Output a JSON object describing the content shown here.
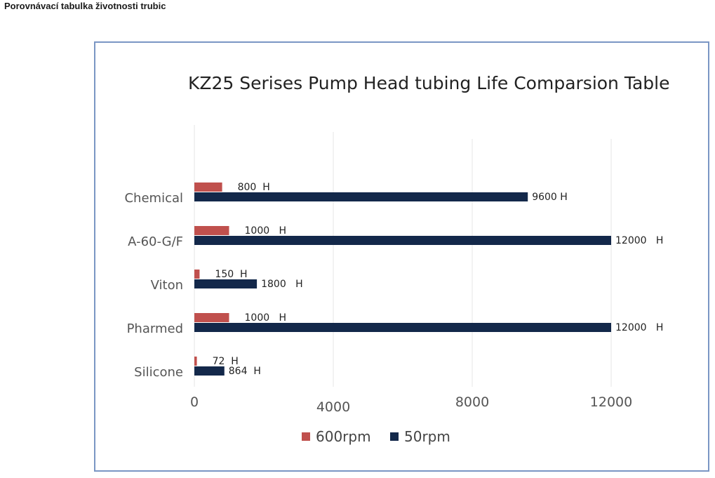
{
  "page": {
    "heading": "Porovnávací tabulka životnosti trubic"
  },
  "chart_data": {
    "type": "bar",
    "orientation": "horizontal",
    "title": "KZ25 Serises Pump Head tubing Life Comparsion Table",
    "categories": [
      "Chemical",
      "A-60-G/F",
      "Viton",
      "Pharmed",
      "Silicone"
    ],
    "series": [
      {
        "name": "600rpm",
        "color": "#c0504d",
        "values": [
          800,
          1000,
          150,
          1000,
          72
        ],
        "labels": [
          "800  H",
          "1000   H",
          "150  H",
          "1000   H",
          "72  H"
        ]
      },
      {
        "name": "50rpm",
        "color": "#13284a",
        "values": [
          9600,
          12000,
          1800,
          12000,
          864
        ],
        "labels": [
          "9600 H",
          "12000   H",
          "1800   H",
          "12000   H",
          "864  H"
        ]
      }
    ],
    "x_ticks": [
      {
        "value": 0,
        "label": "0"
      },
      {
        "value": 4000,
        "label": "4000"
      },
      {
        "value": 8000,
        "label": "8000"
      },
      {
        "value": 12000,
        "label": "12000"
      }
    ],
    "xlim": [
      0,
      12000
    ],
    "grid": "vertical",
    "legend": "bottom-center",
    "xlabel": "",
    "ylabel": ""
  }
}
